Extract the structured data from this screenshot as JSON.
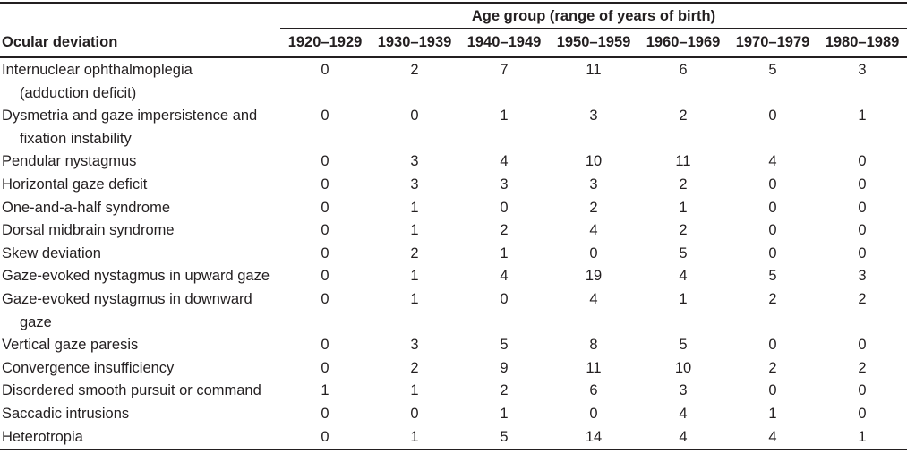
{
  "table": {
    "spanner_header": "Age group (range of years of birth)",
    "row_header": "Ocular deviation",
    "columns": [
      "1920–1929",
      "1930–1939",
      "1940–1949",
      "1950–1959",
      "1960–1969",
      "1970–1979",
      "1980–1989"
    ],
    "rows": [
      {
        "label": [
          "Internuclear ophthalmoplegia",
          "(adduction deficit)"
        ],
        "values": [
          0,
          2,
          7,
          11,
          6,
          5,
          3
        ]
      },
      {
        "label": [
          "Dysmetria and gaze impersistence and",
          "fixation instability"
        ],
        "values": [
          0,
          0,
          1,
          3,
          2,
          0,
          1
        ]
      },
      {
        "label": [
          "Pendular nystagmus"
        ],
        "values": [
          0,
          3,
          4,
          10,
          11,
          4,
          0
        ]
      },
      {
        "label": [
          "Horizontal gaze deficit"
        ],
        "values": [
          0,
          3,
          3,
          3,
          2,
          0,
          0
        ]
      },
      {
        "label": [
          "One-and-a-half syndrome"
        ],
        "values": [
          0,
          1,
          0,
          2,
          1,
          0,
          0
        ]
      },
      {
        "label": [
          "Dorsal midbrain syndrome"
        ],
        "values": [
          0,
          1,
          2,
          4,
          2,
          0,
          0
        ]
      },
      {
        "label": [
          "Skew deviation"
        ],
        "values": [
          0,
          2,
          1,
          0,
          5,
          0,
          0
        ]
      },
      {
        "label": [
          "Gaze-evoked nystagmus in upward gaze"
        ],
        "values": [
          0,
          1,
          4,
          19,
          4,
          5,
          3
        ]
      },
      {
        "label": [
          "Gaze-evoked nystagmus in downward",
          "gaze"
        ],
        "values": [
          0,
          1,
          0,
          4,
          1,
          2,
          2
        ]
      },
      {
        "label": [
          "Vertical gaze paresis"
        ],
        "values": [
          0,
          3,
          5,
          8,
          5,
          0,
          0
        ]
      },
      {
        "label": [
          "Convergence insufficiency"
        ],
        "values": [
          0,
          2,
          9,
          11,
          10,
          2,
          2
        ]
      },
      {
        "label": [
          "Disordered smooth pursuit or command"
        ],
        "values": [
          1,
          1,
          2,
          6,
          3,
          0,
          0
        ]
      },
      {
        "label": [
          "Saccadic intrusions"
        ],
        "values": [
          0,
          0,
          1,
          0,
          4,
          1,
          0
        ]
      },
      {
        "label": [
          "Heterotropia"
        ],
        "values": [
          0,
          1,
          5,
          14,
          4,
          4,
          1
        ]
      }
    ],
    "colors": {
      "text": "#231f20",
      "rule": "#231f20",
      "background": "#ffffff"
    }
  }
}
